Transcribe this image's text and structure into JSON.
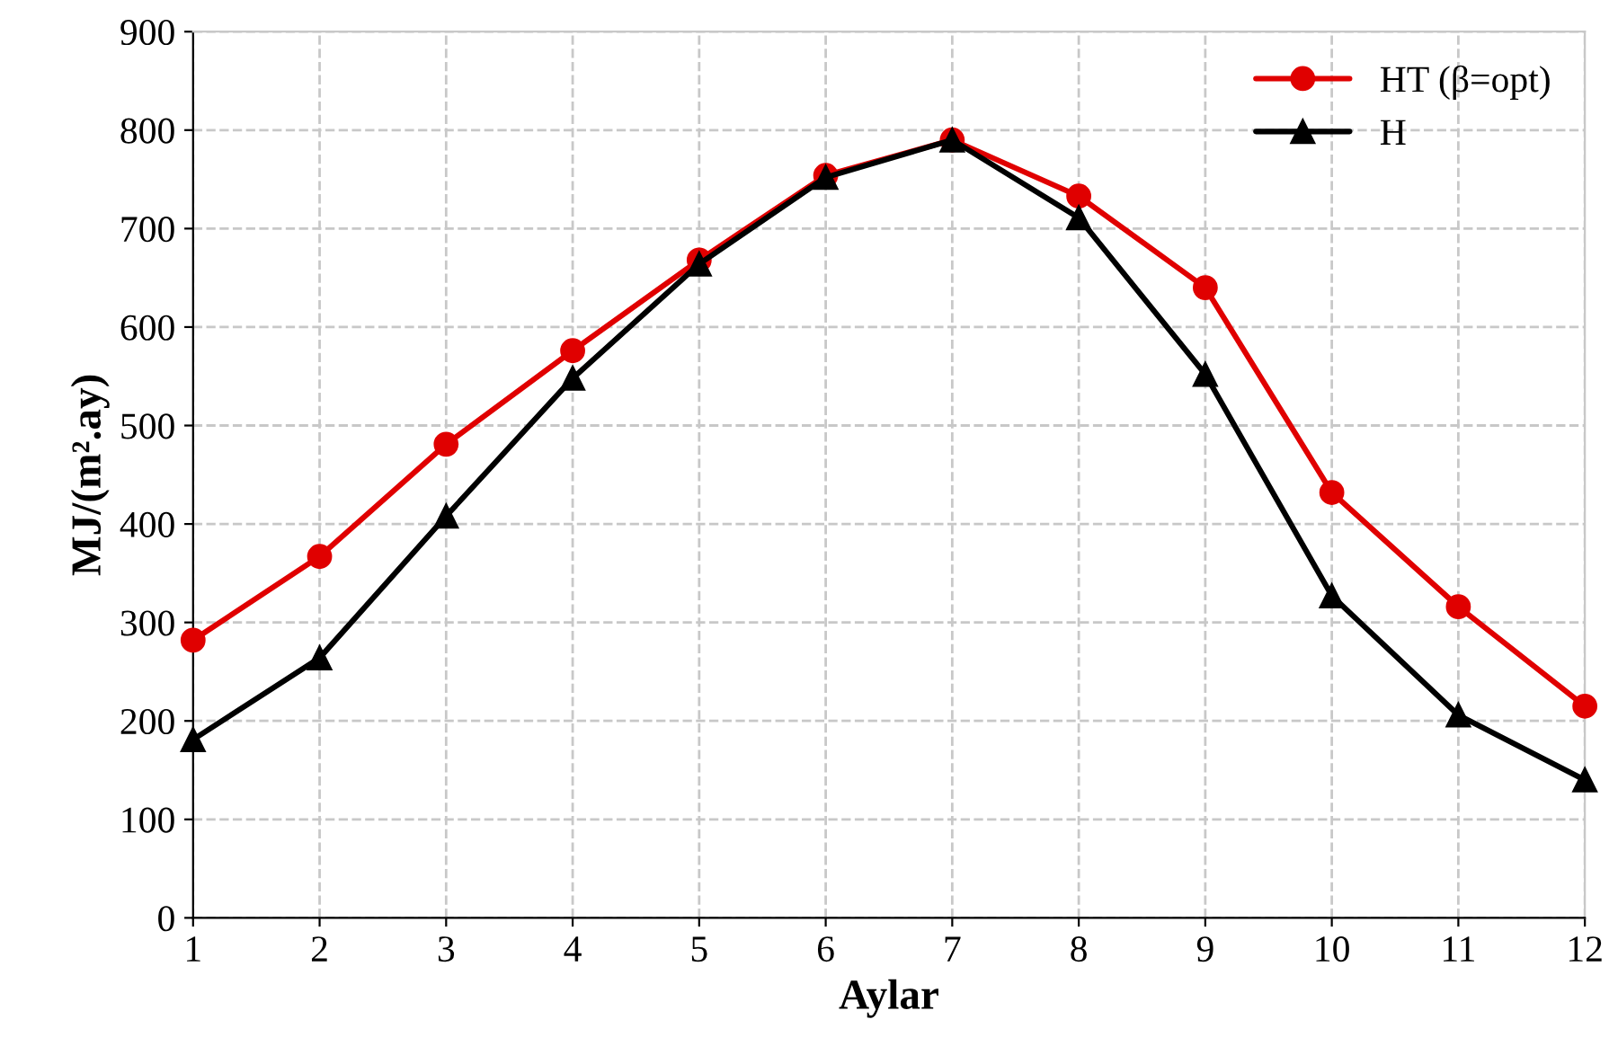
{
  "chart_data": {
    "type": "line",
    "xlabel": "Aylar",
    "ylabel": "MJ/(m².ay)",
    "x": [
      1,
      2,
      3,
      4,
      5,
      6,
      7,
      8,
      9,
      10,
      11,
      12
    ],
    "series": [
      {
        "name": "HT (β=opt)",
        "color": "#e00000",
        "marker": "circle",
        "values": [
          282,
          367,
          481,
          576,
          668,
          754,
          790,
          733,
          640,
          432,
          316,
          215
        ]
      },
      {
        "name": "H",
        "color": "#000000",
        "marker": "triangle",
        "values": [
          181,
          264,
          408,
          548,
          664,
          752,
          790,
          711,
          552,
          327,
          206,
          140
        ]
      }
    ],
    "xlim": [
      1,
      12
    ],
    "xticks": [
      1,
      2,
      3,
      4,
      5,
      6,
      7,
      8,
      9,
      10,
      11,
      12
    ],
    "ylim": [
      0,
      900
    ],
    "yticks": [
      0,
      100,
      200,
      300,
      400,
      500,
      600,
      700,
      800,
      900
    ],
    "grid": true,
    "legend": "top right",
    "line_style": "solid"
  }
}
